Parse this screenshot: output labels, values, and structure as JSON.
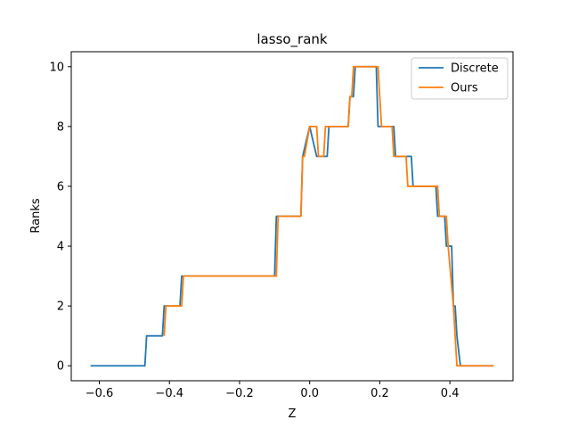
{
  "chart_data": {
    "type": "line",
    "title": "lasso_rank",
    "xlabel": "Z",
    "ylabel": "Ranks",
    "xlim": [
      -0.68,
      0.58
    ],
    "ylim": [
      -0.5,
      10.5
    ],
    "xticks": [
      -0.6,
      -0.4,
      -0.2,
      0.0,
      0.2,
      0.4
    ],
    "xtick_labels": [
      "−0.6",
      "−0.4",
      "−0.2",
      "0.0",
      "0.2",
      "0.4"
    ],
    "yticks": [
      0,
      2,
      4,
      6,
      8,
      10
    ],
    "ytick_labels": [
      "0",
      "2",
      "4",
      "6",
      "8",
      "10"
    ],
    "grid": false,
    "legend_position": "top-right",
    "series": [
      {
        "name": "Discrete",
        "color": "#1f77b4",
        "x": [
          -0.625,
          -0.47,
          -0.465,
          -0.42,
          -0.415,
          -0.37,
          -0.365,
          -0.1,
          -0.095,
          -0.04,
          -0.035,
          -0.025,
          -0.02,
          0.0,
          0.02,
          0.03,
          0.035,
          0.05,
          0.055,
          0.08,
          0.085,
          0.11,
          0.115,
          0.125,
          0.13,
          0.19,
          0.195,
          0.22,
          0.225,
          0.24,
          0.245,
          0.27,
          0.275,
          0.29,
          0.295,
          0.36,
          0.365,
          0.385,
          0.39,
          0.405,
          0.41,
          0.415,
          0.42,
          0.43,
          0.525
        ],
        "y": [
          0,
          0,
          1,
          1,
          2,
          2,
          3,
          3,
          5,
          5,
          5,
          5,
          7,
          8,
          7,
          7,
          7,
          7,
          8,
          8,
          8,
          8,
          9,
          9,
          10,
          10,
          8,
          8,
          8,
          8,
          7,
          7,
          7,
          7,
          6,
          6,
          5,
          5,
          4,
          4,
          2,
          2,
          1,
          0,
          0
        ]
      },
      {
        "name": "Ours",
        "color": "#ff7f0e",
        "x": [
          -0.415,
          -0.41,
          -0.365,
          -0.36,
          -0.095,
          -0.09,
          -0.04,
          -0.035,
          -0.025,
          -0.02,
          -0.015,
          0.0,
          0.005,
          0.02,
          0.025,
          0.04,
          0.045,
          0.11,
          0.115,
          0.12,
          0.125,
          0.195,
          0.2,
          0.205,
          0.235,
          0.24,
          0.275,
          0.28,
          0.365,
          0.37,
          0.39,
          0.395,
          0.41,
          0.415,
          0.42,
          0.525
        ],
        "y": [
          1,
          2,
          2,
          3,
          3,
          5,
          5,
          5,
          5,
          7,
          7,
          8,
          8,
          8,
          7,
          7,
          8,
          8,
          9,
          9,
          10,
          10,
          9,
          8,
          8,
          7,
          7,
          6,
          6,
          5,
          5,
          4,
          2,
          1,
          0,
          0
        ]
      }
    ]
  }
}
